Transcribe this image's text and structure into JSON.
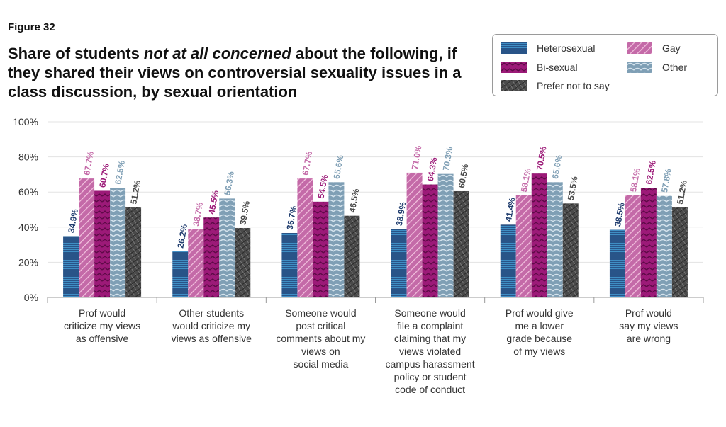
{
  "figure_label": "Figure 32",
  "title_parts": [
    "Share of students ",
    "not at all concerned",
    " about the following, if they shared their views on controversial sexuality issues in a class discussion, by sexual orientation"
  ],
  "chart_data": {
    "type": "bar",
    "title": "Share of students not at all concerned about the following, if they shared their views on controversial sexuality issues in a class discussion, by sexual orientation",
    "categories": [
      [
        "Prof would",
        "criticize my views",
        "as offensive"
      ],
      [
        "Other students",
        "would criticize my",
        "views as offensive"
      ],
      [
        "Someone would",
        "post critical",
        "comments about my",
        "views on",
        "social media"
      ],
      [
        "Someone would",
        "file a complaint",
        "claiming that my",
        "views violated",
        "campus harassment",
        "policy or student",
        "code of conduct"
      ],
      [
        "Prof would give",
        "me a lower",
        "grade because",
        "of my views"
      ],
      [
        "Prof would",
        "say my views",
        "are wrong"
      ]
    ],
    "series": [
      {
        "name": "Heterosexual",
        "color": "#1f3c6e",
        "values": [
          34.9,
          26.2,
          36.7,
          38.9,
          41.4,
          38.5
        ]
      },
      {
        "name": "Gay",
        "color": "#c46aa8",
        "values": [
          67.7,
          38.7,
          67.7,
          71.0,
          58.1,
          58.1
        ]
      },
      {
        "name": "Bi-sexual",
        "color": "#9c1a78",
        "values": [
          60.7,
          45.5,
          54.5,
          64.3,
          70.5,
          62.5
        ]
      },
      {
        "name": "Other",
        "color": "#7f9fb5",
        "values": [
          62.5,
          56.3,
          65.6,
          70.3,
          65.6,
          57.8
        ]
      },
      {
        "name": "Prefer not to say",
        "color": "#4a4a4a",
        "values": [
          51.2,
          39.5,
          46.5,
          60.5,
          53.5,
          51.2
        ]
      }
    ],
    "value_labels": [
      [
        "34.9%",
        "26.2%",
        "36.7%",
        "38.9%",
        "41.4%",
        "38.5%"
      ],
      [
        "67.7%",
        "38.7%",
        "67.7%",
        "71.0%",
        "58.1%",
        "58.1%"
      ],
      [
        "60.7%",
        "45.5%",
        "54.5%",
        "64.3%",
        "70.5%",
        "62.5%"
      ],
      [
        "62.5%",
        "56.3%",
        "65.6%",
        "70.3%",
        "65.6%",
        "57.8%"
      ],
      [
        "51.2%",
        "39.5%",
        "46.5%",
        "60.5%",
        "53.5%",
        "51.2%"
      ]
    ],
    "y_ticks": [
      "0%",
      "20%",
      "40%",
      "60%",
      "80%",
      "100%"
    ],
    "ylim": [
      0,
      100
    ],
    "grid": true,
    "legend_position": "top-right"
  }
}
